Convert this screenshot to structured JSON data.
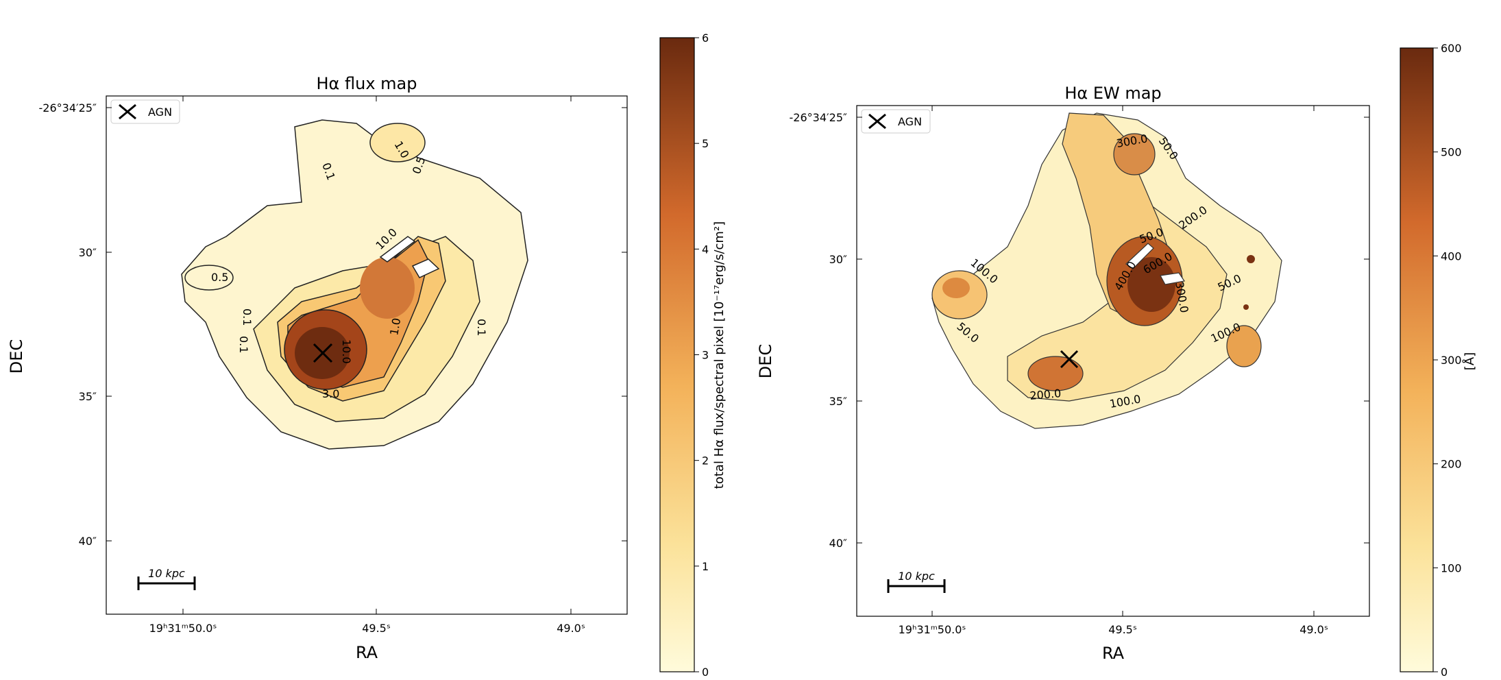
{
  "chart_data": [
    {
      "type": "heatmap",
      "title": "Hα flux map",
      "xlabel": "RA",
      "ylabel": "DEC",
      "xticks": [
        "19ʰ31ᵐ50.0ˢ",
        "49.5ˢ",
        "49.0ˢ"
      ],
      "yticks": [
        "-26°34′25″",
        "30″",
        "35″",
        "40″"
      ],
      "legend": {
        "label": "AGN",
        "marker": "x",
        "location": "top-left"
      },
      "scalebar": {
        "label": "10 kpc"
      },
      "colorbar": {
        "label": "total Hα flux/spectral pixel [10⁻¹⁷erg/s/cm²]",
        "ticks": [
          "0",
          "1",
          "2",
          "3",
          "4",
          "5",
          "6"
        ],
        "range": [
          0,
          6
        ]
      },
      "contour_labels": [
        "0.1",
        "0.1",
        "0.1",
        "0.1",
        "0.5",
        "0.5",
        "1.0",
        "1.0",
        "3.0",
        "10.0",
        "10.0"
      ],
      "colormap": [
        "#fffbdb",
        "#fbe29a",
        "#f3b25a",
        "#d26a2c",
        "#6a2a0f"
      ]
    },
    {
      "type": "heatmap",
      "title": "Hα EW map",
      "xlabel": "RA",
      "ylabel": "DEC",
      "xticks": [
        "19ʰ31ᵐ50.0ˢ",
        "49.5ˢ",
        "49.0ˢ"
      ],
      "yticks": [
        "-26°34′25″",
        "30″",
        "35″",
        "40″"
      ],
      "legend": {
        "label": "AGN",
        "marker": "x",
        "location": "top-left"
      },
      "scalebar": {
        "label": "10 kpc"
      },
      "colorbar": {
        "label": "[Å]",
        "ticks": [
          "0",
          "100",
          "200",
          "300",
          "400",
          "500",
          "600"
        ],
        "range": [
          0,
          600
        ]
      },
      "contour_labels": [
        "300.0",
        "50.0",
        "200.0",
        "50.0",
        "400.0",
        "600.0",
        "300.0",
        "100.0",
        "50.0",
        "50.0",
        "100.0",
        "200.0",
        "100.0"
      ],
      "colormap": [
        "#fffbdb",
        "#fbe29a",
        "#f3b25a",
        "#d26a2c",
        "#6a2a0f"
      ]
    }
  ]
}
